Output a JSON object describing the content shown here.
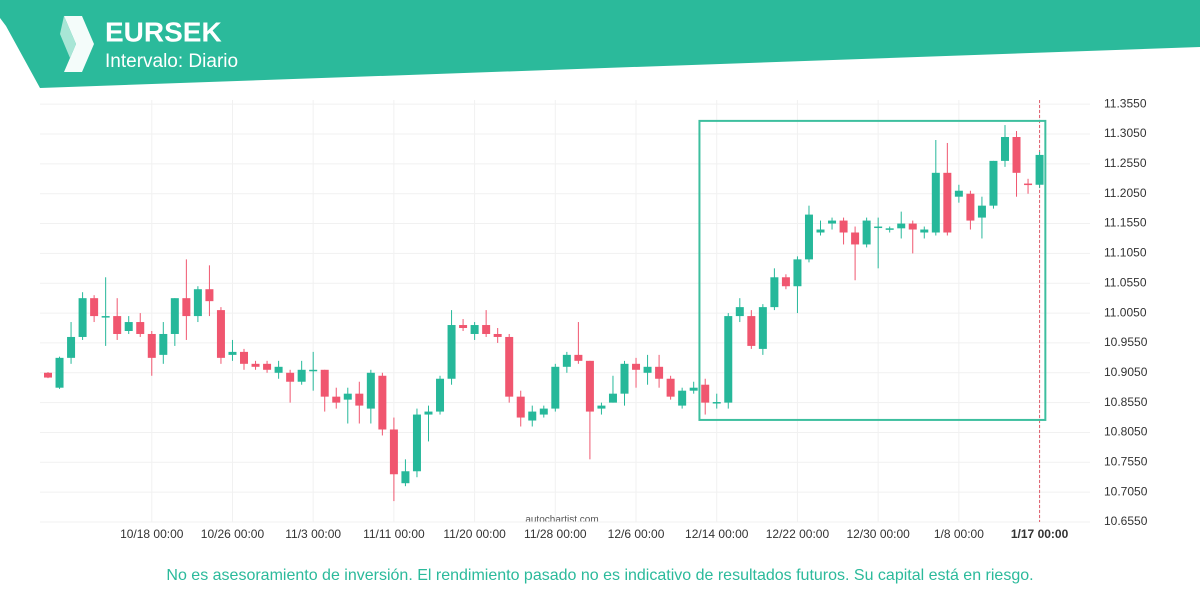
{
  "header": {
    "symbol": "EURSEK",
    "interval": "Intervalo: Diario"
  },
  "footer": "No es asesoramiento de inversión. El rendimiento pasado no es indicativo de resultados futuros. Su capital está en riesgo.",
  "watermark": "autochartist.com",
  "chart_data": {
    "type": "candlestick",
    "up_color": "#26b89a",
    "down_color": "#f0566f",
    "box_color": "#3dbf9f",
    "grid": true,
    "categories": [
      null,
      null,
      null,
      null,
      null,
      null,
      null,
      null,
      null,
      "10/18 00:00",
      null,
      null,
      null,
      null,
      null,
      null,
      "10/26 00:00",
      null,
      null,
      null,
      null,
      null,
      null,
      "11/3 00:00",
      null,
      null,
      null,
      null,
      null,
      null,
      "11/11 00:00",
      null,
      null,
      null,
      null,
      null,
      null,
      "11/20 00:00",
      null,
      null,
      null,
      null,
      null,
      null,
      "11/28 00:00",
      null,
      null,
      null,
      null,
      null,
      null,
      "12/6 00:00",
      null,
      null,
      null,
      null,
      null,
      null,
      "12/14 00:00",
      null,
      null,
      null,
      null,
      null,
      null,
      "12/22 00:00",
      null,
      null,
      null,
      null,
      null,
      null,
      "12/30 00:00",
      null,
      null,
      null,
      null,
      null,
      null,
      "1/8 00:00",
      null,
      null,
      null,
      null,
      null,
      null,
      "1/17 00:00"
    ],
    "open": [
      10.905,
      10.88,
      10.93,
      10.965,
      11.03,
      11.0,
      11.0,
      10.975,
      10.99,
      10.97,
      10.935,
      10.97,
      11.03,
      11.0,
      11.045,
      11.01,
      10.935,
      10.94,
      10.92,
      10.92,
      10.905,
      10.905,
      10.89,
      10.91,
      10.91,
      10.865,
      10.86,
      10.87,
      10.845,
      10.9,
      10.81,
      10.72,
      10.74,
      10.835,
      10.84,
      10.895,
      10.985,
      10.97,
      10.985,
      10.97,
      10.965,
      10.865,
      10.825,
      10.835,
      10.845,
      10.915,
      10.935,
      10.925,
      10.845,
      10.855,
      10.87,
      10.92,
      10.905,
      10.915,
      10.895,
      10.85,
      10.875,
      10.885,
      10.855,
      10.855,
      11.0,
      11.0,
      10.945,
      11.015,
      11.065,
      11.05,
      11.095,
      11.14,
      11.155,
      11.16,
      11.14,
      11.12,
      11.15,
      11.145,
      11.147,
      11.155,
      11.14,
      11.14,
      11.24,
      11.2,
      11.205,
      11.165,
      11.185,
      11.26,
      11.3,
      11.222,
      11.22
    ],
    "high": [
      10.906,
      10.932,
      10.99,
      11.04,
      11.035,
      11.065,
      11.03,
      11.0,
      11.005,
      10.975,
      10.99,
      11.03,
      11.095,
      11.05,
      11.085,
      11.015,
      10.96,
      10.945,
      10.925,
      10.925,
      10.925,
      10.91,
      10.925,
      10.94,
      10.91,
      10.88,
      10.88,
      10.89,
      10.91,
      10.905,
      10.83,
      10.76,
      10.845,
      10.85,
      10.9,
      11.01,
      10.995,
      10.99,
      11.01,
      10.98,
      10.97,
      10.875,
      10.85,
      10.85,
      10.92,
      10.94,
      10.99,
      10.925,
      10.855,
      10.9,
      10.925,
      10.93,
      10.935,
      10.935,
      10.9,
      10.88,
      10.89,
      10.895,
      10.87,
      11.005,
      11.03,
      11.01,
      11.02,
      11.08,
      11.07,
      11.1,
      11.185,
      11.16,
      11.165,
      11.165,
      11.15,
      11.165,
      11.165,
      11.15,
      11.175,
      11.16,
      11.15,
      11.295,
      11.29,
      11.22,
      11.21,
      11.2,
      11.26,
      11.32,
      11.31,
      11.23,
      11.275
    ],
    "low": [
      10.896,
      10.878,
      10.92,
      10.96,
      10.99,
      10.95,
      10.96,
      10.97,
      10.965,
      10.9,
      10.92,
      10.95,
      10.96,
      10.99,
      11.0,
      10.92,
      10.925,
      10.91,
      10.91,
      10.905,
      10.895,
      10.855,
      10.885,
      10.875,
      10.84,
      10.845,
      10.82,
      10.82,
      10.82,
      10.8,
      10.69,
      10.715,
      10.73,
      10.79,
      10.835,
      10.885,
      10.975,
      10.96,
      10.965,
      10.955,
      10.855,
      10.815,
      10.815,
      10.83,
      10.84,
      10.905,
      10.92,
      10.76,
      10.835,
      10.855,
      10.85,
      10.88,
      10.885,
      10.88,
      10.86,
      10.845,
      10.87,
      10.835,
      10.845,
      10.845,
      10.99,
      10.945,
      10.935,
      11.01,
      11.045,
      11.005,
      11.09,
      11.135,
      11.145,
      11.12,
      11.06,
      11.115,
      11.08,
      11.14,
      11.13,
      11.105,
      11.13,
      11.135,
      11.135,
      11.19,
      11.145,
      11.13,
      11.18,
      11.25,
      11.2,
      11.205,
      11.215
    ],
    "close": [
      10.897,
      10.93,
      10.965,
      11.03,
      11.0,
      11.0,
      10.97,
      10.99,
      10.97,
      10.93,
      10.97,
      11.03,
      11.0,
      11.045,
      11.025,
      10.93,
      10.94,
      10.92,
      10.915,
      10.91,
      10.915,
      10.89,
      10.91,
      10.91,
      10.865,
      10.855,
      10.87,
      10.85,
      10.905,
      10.81,
      10.735,
      10.74,
      10.835,
      10.84,
      10.895,
      10.985,
      10.98,
      10.985,
      10.97,
      10.965,
      10.865,
      10.83,
      10.84,
      10.845,
      10.915,
      10.935,
      10.925,
      10.84,
      10.85,
      10.87,
      10.92,
      10.91,
      10.915,
      10.895,
      10.865,
      10.875,
      10.88,
      10.855,
      10.856,
      11.0,
      11.015,
      10.95,
      11.015,
      11.065,
      11.05,
      11.095,
      11.17,
      11.145,
      11.16,
      11.14,
      11.12,
      11.16,
      11.15,
      11.147,
      11.155,
      11.145,
      11.145,
      11.24,
      11.14,
      11.21,
      11.16,
      11.185,
      11.26,
      11.3,
      11.24,
      11.22,
      11.27
    ],
    "pattern": {
      "from": 57,
      "to": 86,
      "top": 11.327,
      "bottom": 10.826
    },
    "ylim": [
      10.655,
      11.362
    ],
    "yticks": [
      {
        "value": 10.655,
        "label": "10.6550"
      },
      {
        "value": 10.705,
        "label": "10.7050"
      },
      {
        "value": 10.755,
        "label": "10.7550"
      },
      {
        "value": 10.805,
        "label": "10.8050"
      },
      {
        "value": 10.855,
        "label": "10.8550"
      },
      {
        "value": 10.905,
        "label": "10.9050"
      },
      {
        "value": 10.955,
        "label": "10.9550"
      },
      {
        "value": 11.005,
        "label": "11.0050"
      },
      {
        "value": 11.055,
        "label": "11.0550"
      },
      {
        "value": 11.105,
        "label": "11.1050"
      },
      {
        "value": 11.155,
        "label": "11.1550"
      },
      {
        "value": 11.205,
        "label": "11.2050"
      },
      {
        "value": 11.255,
        "label": "11.2550"
      },
      {
        "value": 11.305,
        "label": "11.3050"
      },
      {
        "value": 11.355,
        "label": "11.3550"
      }
    ]
  }
}
